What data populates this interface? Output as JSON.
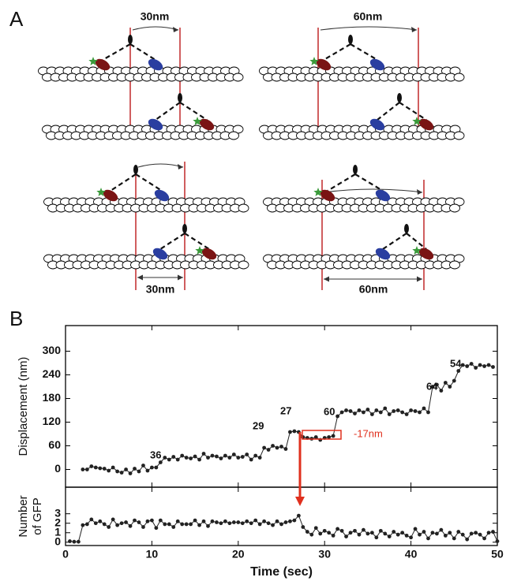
{
  "panel_labels": [
    "A",
    "B"
  ],
  "diagram": {
    "distances": [
      "30nm",
      "60nm",
      "30nm",
      "60nm"
    ]
  },
  "chart_data": [
    {
      "type": "line",
      "ylabel": "Displacement (nm)",
      "x": [
        2,
        2.5,
        3,
        3.5,
        4,
        4.5,
        5,
        5.5,
        6,
        6.5,
        7,
        7.5,
        8,
        8.5,
        9,
        9.5,
        10,
        10.5,
        11,
        11.5,
        12,
        12.5,
        13,
        13.5,
        14,
        14.5,
        15,
        15.5,
        16,
        16.5,
        17,
        17.5,
        18,
        18.5,
        19,
        19.5,
        20,
        20.5,
        21,
        21.5,
        22,
        22.5,
        23,
        23.5,
        24,
        24.5,
        25,
        25.5,
        26,
        26.5,
        27,
        27.5,
        28,
        28.5,
        29,
        29.5,
        30,
        30.5,
        31,
        31.5,
        32,
        32.5,
        33,
        33.5,
        34,
        34.5,
        35,
        35.5,
        36,
        36.5,
        37,
        37.5,
        38,
        38.5,
        39,
        39.5,
        40,
        40.5,
        41,
        41.5,
        42,
        42.5,
        43,
        43.5,
        44,
        44.5,
        45,
        45.5,
        46,
        46.5,
        47,
        47.5,
        48,
        48.5,
        49,
        49.5
      ],
      "series": [
        {
          "color": "#222222",
          "values": [
            0,
            0,
            8,
            5,
            3,
            2,
            -3,
            5,
            -5,
            -8,
            0,
            -10,
            2,
            -5,
            10,
            -3,
            5,
            5,
            18,
            30,
            25,
            32,
            25,
            35,
            30,
            28,
            33,
            25,
            40,
            30,
            35,
            33,
            28,
            35,
            30,
            38,
            30,
            32,
            38,
            25,
            35,
            30,
            55,
            50,
            60,
            55,
            58,
            52,
            95,
            97,
            95,
            82,
            80,
            78,
            82,
            75,
            80,
            82,
            85,
            135,
            145,
            150,
            148,
            142,
            150,
            145,
            152,
            140,
            150,
            145,
            155,
            140,
            148,
            150,
            145,
            140,
            150,
            148,
            145,
            155,
            145,
            210,
            215,
            200,
            220,
            210,
            225,
            250,
            265,
            262,
            268,
            258,
            265,
            262,
            265,
            260
          ]
        }
      ],
      "xlim": [
        0,
        50
      ],
      "xticks": [
        0,
        10,
        20,
        30,
        40,
        50
      ],
      "ylim": [
        -45,
        365
      ],
      "yticks": [
        0,
        60,
        120,
        180,
        240,
        300
      ],
      "annotations": [
        "36",
        "29",
        "27",
        "60",
        "64",
        "54",
        "-17nm"
      ]
    },
    {
      "type": "line",
      "ylabel": [
        "Number",
        "of GFP"
      ],
      "xlabel": "Time (sec)",
      "x": [
        0.5,
        1,
        1.5,
        2,
        2.5,
        3,
        3.5,
        4,
        4.5,
        5,
        5.5,
        6,
        6.5,
        7,
        7.5,
        8,
        8.5,
        9,
        9.5,
        10,
        10.5,
        11,
        11.5,
        12,
        12.5,
        13,
        13.5,
        14,
        14.5,
        15,
        15.5,
        16,
        16.5,
        17,
        17.5,
        18,
        18.5,
        19,
        19.5,
        20,
        20.5,
        21,
        21.5,
        22,
        22.5,
        23,
        23.5,
        24,
        24.5,
        25,
        25.5,
        26,
        26.5,
        27,
        27.5,
        28,
        28.5,
        29,
        29.5,
        30,
        30.5,
        31,
        31.5,
        32,
        32.5,
        33,
        33.5,
        34,
        34.5,
        35,
        35.5,
        36,
        36.5,
        37,
        37.5,
        38,
        38.5,
        39,
        39.5,
        40,
        40.5,
        41,
        41.5,
        42,
        42.5,
        43,
        43.5,
        44,
        44.5,
        45,
        45.5,
        46,
        46.5,
        47,
        47.5,
        48,
        48.5,
        49,
        49.5,
        50
      ],
      "series": [
        {
          "color": "#222222",
          "values": [
            0.1,
            0.05,
            0.05,
            1.8,
            1.9,
            2.4,
            2.0,
            2.2,
            1.9,
            1.6,
            2.4,
            1.8,
            2.0,
            2.1,
            1.7,
            2.3,
            2.1,
            1.6,
            2.2,
            2.3,
            1.5,
            2.3,
            1.9,
            1.9,
            1.6,
            2.2,
            1.9,
            1.9,
            1.9,
            2.3,
            1.8,
            2.2,
            1.7,
            2.2,
            2.1,
            2.0,
            2.2,
            2.0,
            2.1,
            2.1,
            2.0,
            2.2,
            2.0,
            2.3,
            1.9,
            2.2,
            2.0,
            1.8,
            2.2,
            1.9,
            2.1,
            2.2,
            2.3,
            2.8,
            1.6,
            1.1,
            0.8,
            1.5,
            0.9,
            1.2,
            1.0,
            0.7,
            1.4,
            1.2,
            0.6,
            1.0,
            1.2,
            0.8,
            1.3,
            0.9,
            1.0,
            0.5,
            1.2,
            0.9,
            0.6,
            1.1,
            0.8,
            1.0,
            0.7,
            0.5,
            1.4,
            0.8,
            1.1,
            0.4,
            1.0,
            0.9,
            1.3,
            0.7,
            1.0,
            0.4,
            1.1,
            0.8,
            0.3,
            0.9,
            1.0,
            0.8,
            0.4,
            1.0,
            1.1,
            0.1
          ]
        }
      ],
      "xlim": [
        0,
        50
      ],
      "xticks": [
        0,
        10,
        20,
        30,
        40,
        50
      ],
      "ylim": [
        -0.35,
        5.8
      ],
      "yticks": [
        0,
        1,
        2,
        3
      ]
    }
  ]
}
